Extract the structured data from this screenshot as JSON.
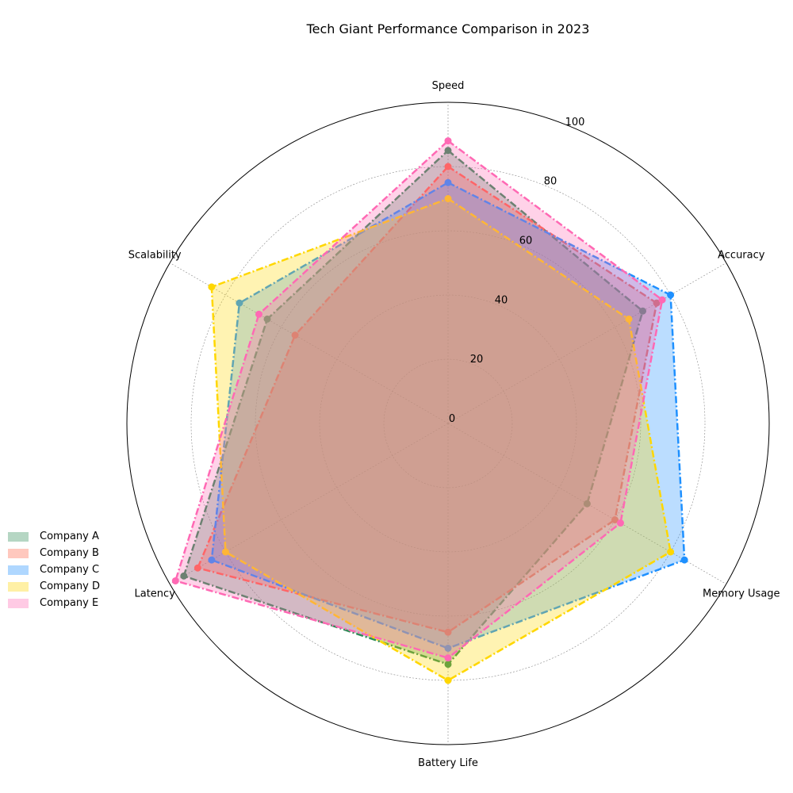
{
  "chart_data": {
    "type": "radar",
    "title": "Tech Giant Performance Comparison in 2023",
    "categories": [
      "Speed",
      "Accuracy",
      "Memory Usage",
      "Battery Life",
      "Latency",
      "Scalability"
    ],
    "rlim": [
      0,
      100
    ],
    "rticks": [
      0,
      20,
      40,
      60,
      80,
      100
    ],
    "legend_position": "lower-left",
    "series": [
      {
        "name": "Company A",
        "values": [
          85,
          70,
          50,
          75,
          95,
          65
        ],
        "color": "#2e8b57"
      },
      {
        "name": "Company B",
        "values": [
          80,
          75,
          60,
          65,
          90,
          55
        ],
        "color": "#ff6347"
      },
      {
        "name": "Company C",
        "values": [
          75,
          80,
          85,
          70,
          85,
          75
        ],
        "color": "#1e90ff"
      },
      {
        "name": "Company D",
        "values": [
          70,
          65,
          80,
          80,
          80,
          85
        ],
        "color": "#ffd700"
      },
      {
        "name": "Company E",
        "values": [
          88,
          77,
          62,
          73,
          98,
          68
        ],
        "color": "#ff69b4"
      }
    ]
  }
}
